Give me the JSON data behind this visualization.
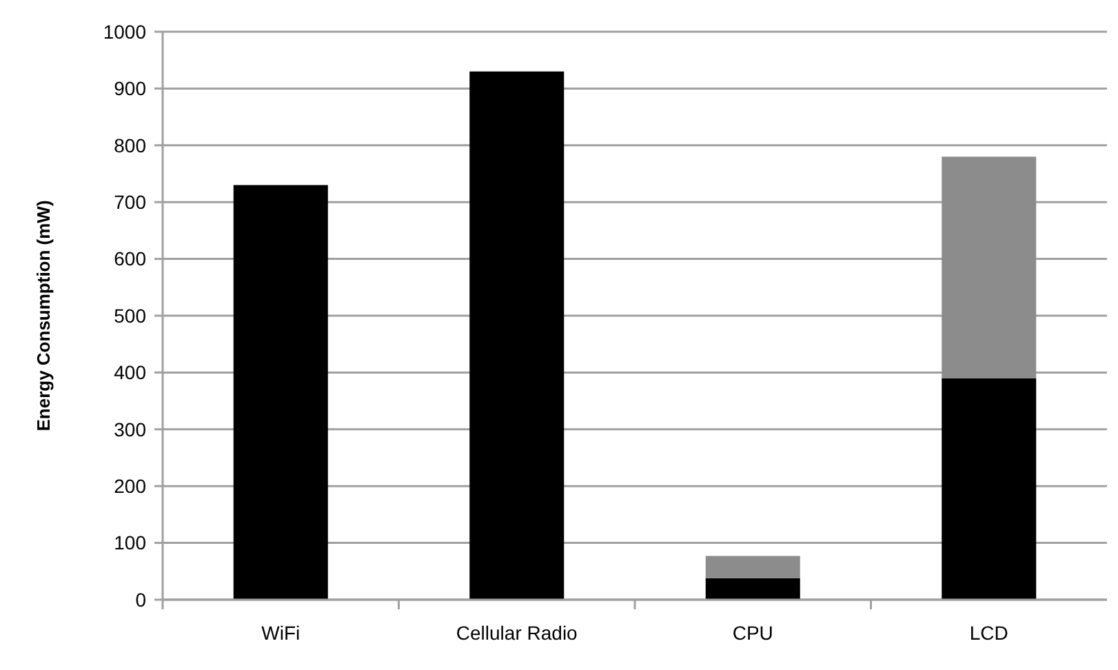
{
  "chart_data": {
    "type": "bar",
    "ylabel": "Energy Consumption (mW)",
    "categories": [
      "WiFi",
      "Cellular Radio",
      "CPU",
      "LCD"
    ],
    "stacked": true,
    "series": [
      {
        "color": "#000000",
        "values": [
          730,
          930,
          38,
          390
        ]
      },
      {
        "color": "#8c8c8c",
        "values": [
          null,
          null,
          39,
          390
        ]
      }
    ],
    "ylim": [
      0,
      1000
    ],
    "yticks": [
      0,
      100,
      200,
      300,
      400,
      500,
      600,
      700,
      800,
      900,
      1000
    ],
    "grid": "y"
  }
}
